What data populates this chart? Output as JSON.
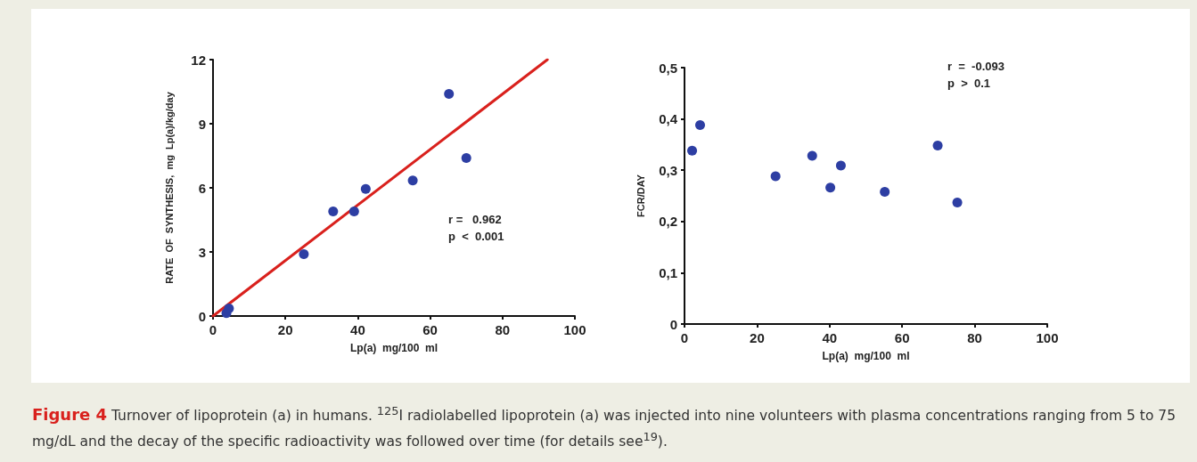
{
  "chart_data": [
    {
      "type": "scatter",
      "xlabel": "Lp(a)  mg/100  ml",
      "ylabel": "RATE  OF  SYNTHESIS,  mg  Lp(a)/kg/day",
      "xlim": [
        0,
        100
      ],
      "xticks": [
        0,
        20,
        40,
        60,
        80,
        100
      ],
      "ylim": [
        0,
        12
      ],
      "yticks": [
        0,
        3,
        6,
        9,
        12
      ],
      "grid": false,
      "marker": "circle",
      "annotations": [
        "r =   0.962",
        "p  <  0.001"
      ],
      "series": [
        {
          "type": "scatter",
          "color": "#2d3ea3",
          "x": [
            3.7,
            4.4,
            25.1,
            33.2,
            39,
            42.2,
            55.2,
            65.2,
            70
          ],
          "values": [
            0.14,
            0.35,
            2.9,
            4.9,
            4.9,
            5.95,
            6.34,
            10.4,
            7.4
          ]
        },
        {
          "type": "line",
          "color": "#d9211d",
          "marker": "none",
          "line_style": "solid",
          "x": [
            0,
            92.4
          ],
          "values": [
            0,
            12
          ]
        }
      ]
    },
    {
      "type": "scatter",
      "xlabel": "Lp(a)  mg/100  ml",
      "ylabel": "FCR/DAY",
      "xlim": [
        0,
        100
      ],
      "xticks": [
        0,
        20,
        40,
        60,
        80,
        100
      ],
      "ylim": [
        0,
        0.5
      ],
      "yticks": [
        0,
        {
          "value": 0.1,
          "label": "0,1"
        },
        {
          "value": 0.2,
          "label": "0,2"
        },
        {
          "value": 0.3,
          "label": "0,3"
        },
        {
          "value": 0.4,
          "label": "0,4"
        },
        {
          "value": 0.5,
          "label": "0,5"
        }
      ],
      "grid": false,
      "marker": "circle",
      "annotations": [
        "r  =  -0.093",
        "p  >  0.1"
      ],
      "series": [
        {
          "type": "scatter",
          "color": "#2d3ea3",
          "x": [
            2.1,
            4.3,
            25.1,
            35.2,
            40.2,
            43.1,
            55.2,
            69.8,
            75.2
          ],
          "values": [
            0.338,
            0.388,
            0.288,
            0.328,
            0.266,
            0.309,
            0.258,
            0.348,
            0.237
          ]
        }
      ]
    },
    {
      "type": "other",
      "title": "Figure 4",
      "annotations": [
        "Turnover of lipoprotein (a) in humans. $^{125}$I radiolabelled lipoprotein (a) was injected into nine volunteers with plasma concentrations ranging from 5 to 75 mg/dL and the decay of the specific radioactivity was followed over time (for details see$^{19}$)."
      ]
    }
  ]
}
